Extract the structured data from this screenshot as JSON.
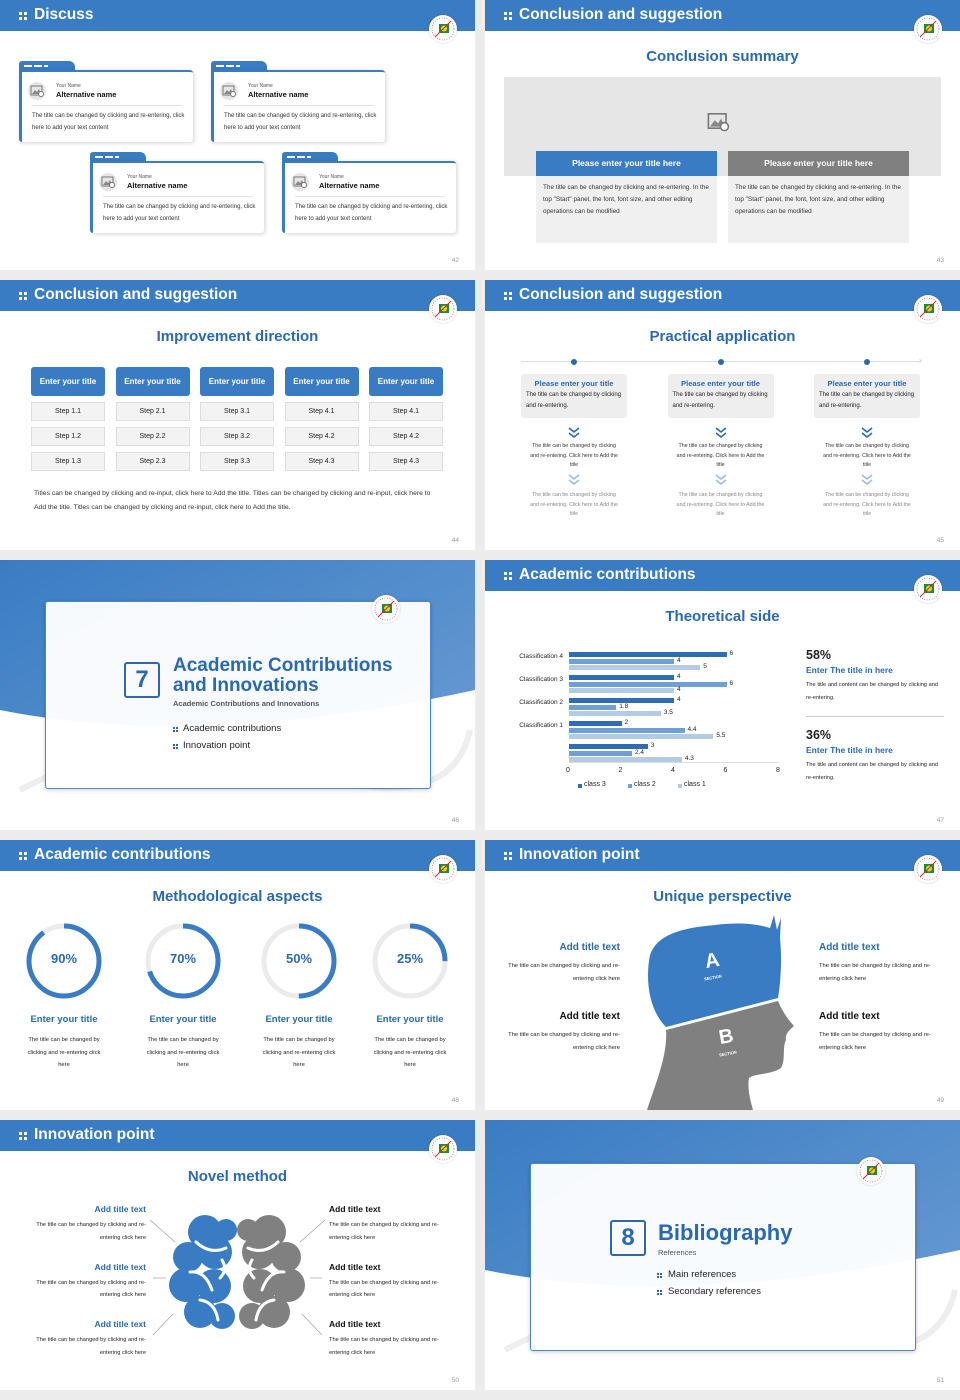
{
  "colors": {
    "primary": "#3a7cc3",
    "title": "#2a69b0",
    "gray": "#808080",
    "light": "#f0f0f0"
  },
  "slides": [
    {
      "page": "42",
      "header": "Discuss",
      "cards": [
        {
          "label": "Your Name",
          "name": "Alternative name",
          "text": "The title can be changed by clicking and re-entering, click here to add your text content"
        },
        {
          "label": "Your Name",
          "name": "Alternative name",
          "text": "The title can be changed by clicking and re-entering, click here to add your text content"
        },
        {
          "label": "Your Name",
          "name": "Alternative name",
          "text": "The title can be changed by clicking and re-entering, click here to add your text content"
        },
        {
          "label": "Your Name",
          "name": "Alternative name",
          "text": "The title can be changed by clicking and re-entering, click here to add your text content"
        }
      ]
    },
    {
      "page": "43",
      "header": "Conclusion and suggestion",
      "subtitle": "Conclusion summary",
      "panels": [
        {
          "title": "Please enter your title here",
          "text": "The title can be changed by clicking and re-entering. In the top \"Start\" panel, the font, font size, and other editing operations can be modified"
        },
        {
          "title": "Please enter your title here",
          "text": "The title can be changed by clicking and re-entering. In the top \"Start\" panel, the font, font size, and other editing operations can be modified"
        }
      ]
    },
    {
      "page": "44",
      "header": "Conclusion and suggestion",
      "subtitle": "Improvement direction",
      "columns": [
        {
          "title": "Enter your title",
          "steps": [
            "Step 1.1",
            "Step 1.2",
            "Step 1.3"
          ]
        },
        {
          "title": "Enter your title",
          "steps": [
            "Step 2.1",
            "Step 2.2",
            "Step 2.3"
          ]
        },
        {
          "title": "Enter your title",
          "steps": [
            "Step 3.1",
            "Step 3.2",
            "Step 3.3"
          ]
        },
        {
          "title": "Enter your title",
          "steps": [
            "Step 4.1",
            "Step 4.2",
            "Step 4.3"
          ]
        },
        {
          "title": "Enter your title",
          "steps": [
            "Step 4.1",
            "Step 4.2",
            "Step 4.3"
          ]
        }
      ],
      "paragraph": "Titles can be changed by clicking and re-input, click here to Add the title. Titles can be changed by clicking and re-input, click here to Add the title. Titles can be changed by clicking and re-input, click here to Add the title."
    },
    {
      "page": "45",
      "header": "Conclusion and suggestion",
      "subtitle": "Practical application",
      "items": [
        {
          "title": "Please enter your title",
          "text": "The title can be changed by clicking and re-entering.",
          "step1": "The title can be changed by clicking and re-entering. Click here to Add the title",
          "step2": "The title can be changed by clicking and re-entering. Click here to Add the title"
        },
        {
          "title": "Please enter your title",
          "text": "The title can be changed by clicking and re-entering.",
          "step1": "The title can be changed by clicking and re-entering. Click here to Add the title",
          "step2": "The title can be changed by clicking and re-entering. Click here to Add the title"
        },
        {
          "title": "Please enter your title",
          "text": "The title can be changed by clicking and re-entering.",
          "step1": "The title can be changed by clicking and re-entering. Click here to Add the title",
          "step2": "The title can be changed by clicking and re-entering. Click here to Add the title"
        }
      ]
    },
    {
      "page": "46",
      "section_number": "7",
      "title_line1": "Academic Contributions",
      "title_line2": "and Innovations",
      "subtitle": "Academic Contributions and Innovations",
      "items": [
        "Academic contributions",
        "Innovation point"
      ]
    },
    {
      "page": "47",
      "header": "Academic contributions",
      "subtitle": "Theoretical side",
      "stats": [
        {
          "value": "58%",
          "title": "Enter The title in here",
          "text": "The title and content can be changed by clicking and re-entering."
        },
        {
          "value": "36%",
          "title": "Enter The title in here",
          "text": "The title and content can be changed by clicking and re-entering."
        }
      ]
    },
    {
      "page": "48",
      "header": "Academic contributions",
      "subtitle": "Methodological aspects",
      "rings": [
        {
          "value": 90,
          "label": "90%",
          "title": "Enter your title",
          "text": "The title can be changed by clicking and re-entering click here"
        },
        {
          "value": 70,
          "label": "70%",
          "title": "Enter your title",
          "text": "The title can be changed by clicking and re-entering click here"
        },
        {
          "value": 50,
          "label": "50%",
          "title": "Enter your title",
          "text": "The title can be changed by clicking and re-entering click here"
        },
        {
          "value": 25,
          "label": "25%",
          "title": "Enter your title",
          "text": "The title can be changed by clicking and re-entering click here"
        }
      ]
    },
    {
      "page": "49",
      "header": "Innovation point",
      "subtitle": "Unique perspective",
      "head": {
        "a": "A",
        "b": "B",
        "section": "SECTION"
      },
      "blocks": [
        {
          "title": "Add title text",
          "text": "The title can be changed by clicking and re-entering click here"
        },
        {
          "title": "Add title text",
          "text": "The title can be changed by clicking and re-entering click here"
        },
        {
          "title": "Add title text",
          "text": "The title can be changed by clicking and re-entering click here"
        },
        {
          "title": "Add title text",
          "text": "The title can be changed by clicking and re-entering click here"
        }
      ]
    },
    {
      "page": "50",
      "header": "Innovation point",
      "subtitle": "Novel method",
      "blocks": [
        {
          "title": "Add title text",
          "text": "The title can be changed by clicking and re-entering click here"
        },
        {
          "title": "Add title text",
          "text": "The title can be changed by clicking and re-entering click here"
        },
        {
          "title": "Add title text",
          "text": "The title can be changed by clicking and re-entering click here"
        },
        {
          "title": "Add title text",
          "text": "The title can be changed by clicking and re-entering click here"
        },
        {
          "title": "Add title text",
          "text": "The title can be changed by clicking and re-entering click here"
        },
        {
          "title": "Add title text",
          "text": "The title can be changed by clicking and re-entering click here"
        }
      ]
    },
    {
      "page": "51",
      "section_number": "8",
      "title_line1": "Bibliography",
      "subtitle": "References",
      "items": [
        "Main references",
        "Secondary references"
      ]
    }
  ],
  "chart_data": {
    "type": "bar",
    "orientation": "horizontal",
    "title": "",
    "xlabel": "",
    "ylabel": "",
    "categories": [
      "Classification 4",
      "Classification 3",
      "Classification 2",
      "Classification 1",
      ""
    ],
    "series": [
      {
        "name": "class 3",
        "color": "#2e6db4",
        "values": [
          6,
          4,
          4,
          2,
          3
        ]
      },
      {
        "name": "class 2",
        "color": "#6f9fd4",
        "values": [
          4,
          6,
          1.8,
          4.4,
          2.4
        ]
      },
      {
        "name": "class 1",
        "color": "#b4cbe6",
        "values": [
          5,
          4,
          3.5,
          5.5,
          4.3
        ]
      }
    ],
    "xlim": [
      0,
      8
    ],
    "xticks": [
      "0",
      "2",
      "4",
      "6",
      "8"
    ],
    "grid": false,
    "legend": "bottom",
    "data_labels": true
  }
}
